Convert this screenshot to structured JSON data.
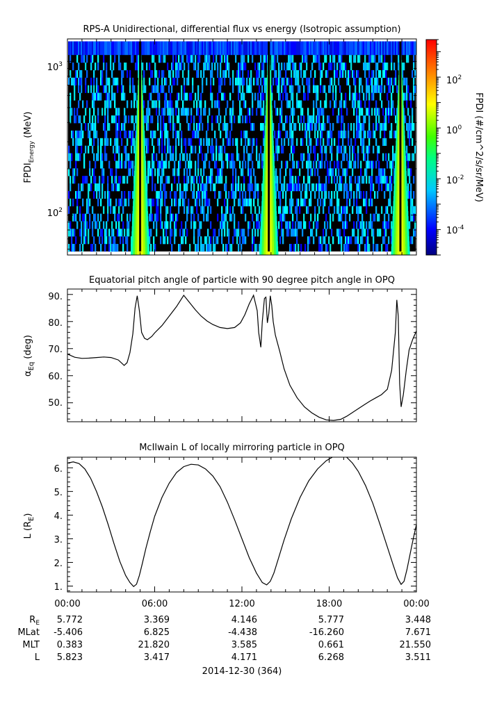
{
  "panels": [
    {
      "title": "RPS-A Unidirectional, differential flux vs energy (Isotropic assumption)",
      "ylabel_main": "FPDI",
      "ylabel_sub": "Energy",
      "ylabel_unit": "(MeV)",
      "yticks": [
        "10",
        "10"
      ],
      "ytick_exps": [
        "3",
        "2"
      ],
      "colorbar": {
        "label": "FPDI (#/cm^2/s/sr/MeV)",
        "tick_bases": [
          "10",
          "10",
          "10",
          "10"
        ],
        "tick_exps": [
          "2",
          "0",
          "-2",
          "-4"
        ]
      }
    },
    {
      "title": "Equatorial pitch angle of particle with 90 degree pitch angle in OPQ",
      "ylabel": "α",
      "ylabel_sub": "Eq",
      "ylabel_unit": "(deg)",
      "yticks": [
        "90.",
        "80.",
        "70.",
        "60.",
        "50."
      ]
    },
    {
      "title": "McIlwain L of locally mirroring particle in OPQ",
      "ylabel": "L (R",
      "ylabel_sub": "E",
      "ylabel_close": ")",
      "yticks": [
        "6.",
        "5.",
        "4.",
        "3.",
        "2.",
        "1."
      ]
    }
  ],
  "xaxis": {
    "ticks": [
      "00:00",
      "06:00",
      "12:00",
      "18:00",
      "00:00"
    ],
    "date_label": "2014-12-30 (364)"
  },
  "ephemeris": {
    "rows": [
      {
        "name": "R",
        "sub": "E",
        "values": [
          "5.772",
          "3.369",
          "4.146",
          "5.777",
          "3.448"
        ]
      },
      {
        "name": "MLat",
        "sub": "",
        "values": [
          "-5.406",
          "6.825",
          "-4.438",
          "-16.260",
          "7.671"
        ]
      },
      {
        "name": "MLT",
        "sub": "",
        "values": [
          "0.383",
          "21.820",
          "3.585",
          "0.661",
          "21.550"
        ]
      },
      {
        "name": "L",
        "sub": "",
        "values": [
          "5.823",
          "3.417",
          "4.171",
          "6.268",
          "3.511"
        ]
      }
    ]
  },
  "chart_data": [
    {
      "type": "heatmap",
      "title": "RPS-A Unidirectional, differential flux vs energy (Isotropic assumption)",
      "xlabel": "",
      "ylabel": "FPDI Energy (MeV)",
      "x_range_hours": [
        0,
        24
      ],
      "y_scale": "log",
      "ylim": [
        55,
        1400
      ],
      "colorbar_scale": "log",
      "colorbar_range": [
        1e-05,
        3000
      ],
      "colorbar_label": "FPDI (#/cm^2/s/sr/MeV)",
      "colormap": "rainbow (blue-cyan-green-yellow-red)",
      "background": "#000000",
      "bands": [
        {
          "center_hour": 5.0,
          "peak_log10_flux": 0.4
        },
        {
          "center_hour": 13.85,
          "peak_log10_flux": 0.5
        },
        {
          "center_hour": 22.9,
          "peak_log10_flux": 0.3
        }
      ]
    },
    {
      "type": "line",
      "title": "Equatorial pitch angle of particle with 90 degree pitch angle in OPQ",
      "ylabel": "αEq (deg)",
      "ylim": [
        43,
        92
      ],
      "x_hours": [
        0,
        0.5,
        1,
        1.5,
        2,
        2.5,
        3,
        3.5,
        3.9,
        4.1,
        4.3,
        4.5,
        4.65,
        4.8,
        4.95,
        5.1,
        5.3,
        5.5,
        5.8,
        6.0,
        6.5,
        7.0,
        7.5,
        8.0,
        8.4,
        8.8,
        9.2,
        9.6,
        10.0,
        10.5,
        11.0,
        11.5,
        11.9,
        12.2,
        12.5,
        12.8,
        13.05,
        13.15,
        13.3,
        13.4,
        13.55,
        13.65,
        13.75,
        13.85,
        13.95,
        14.05,
        14.15,
        14.3,
        14.6,
        14.9,
        15.3,
        15.8,
        16.3,
        16.8,
        17.3,
        17.8,
        18.3,
        18.8,
        19.2,
        19.6,
        20.0,
        20.4,
        20.8,
        21.2,
        21.6,
        22.0,
        22.3,
        22.55,
        22.65,
        22.75,
        22.85,
        22.95,
        23.1,
        23.3,
        23.5,
        23.75,
        24.0
      ],
      "y_deg": [
        68.0,
        66.8,
        66.4,
        66.5,
        66.7,
        66.9,
        66.7,
        65.8,
        63.8,
        64.8,
        68.5,
        75.5,
        85.0,
        89.5,
        84.0,
        76.0,
        73.8,
        73.3,
        74.5,
        75.8,
        78.5,
        82.0,
        85.5,
        89.7,
        87.0,
        84.3,
        82.0,
        80.2,
        78.9,
        77.8,
        77.4,
        77.8,
        79.5,
        82.5,
        86.5,
        89.7,
        84.0,
        76.0,
        70.5,
        80.0,
        88.5,
        89.0,
        79.5,
        83.0,
        89.5,
        86.0,
        80.0,
        75.0,
        69.0,
        62.5,
        56.5,
        51.8,
        48.5,
        46.3,
        44.7,
        43.7,
        43.5,
        43.9,
        45.0,
        46.4,
        47.8,
        49.2,
        50.6,
        51.8,
        53.0,
        55.0,
        62.0,
        76.0,
        88.0,
        82.0,
        57.0,
        48.5,
        53.0,
        62.0,
        69.5,
        73.5,
        76.5
      ]
    },
    {
      "type": "line",
      "title": "McIlwain L of locally mirroring particle in OPQ",
      "ylabel": "L (RE)",
      "ylim": [
        0.75,
        6.45
      ],
      "x_hours": [
        0,
        0.4,
        0.8,
        1.2,
        1.6,
        2.0,
        2.4,
        2.8,
        3.2,
        3.6,
        4.0,
        4.3,
        4.55,
        4.75,
        4.95,
        5.15,
        5.4,
        5.7,
        6.0,
        6.5,
        7.0,
        7.5,
        8.0,
        8.5,
        9.0,
        9.5,
        10.0,
        10.5,
        11.0,
        11.5,
        12.0,
        12.5,
        13.0,
        13.4,
        13.7,
        13.95,
        14.2,
        14.5,
        14.9,
        15.4,
        16.0,
        16.6,
        17.2,
        17.8,
        18.3,
        18.8,
        19.2,
        19.6,
        20.0,
        20.5,
        21.0,
        21.5,
        22.0,
        22.4,
        22.7,
        22.95,
        23.15,
        23.35,
        23.6,
        23.8,
        24.0
      ],
      "y_re": [
        6.2,
        6.25,
        6.18,
        5.95,
        5.55,
        5.0,
        4.35,
        3.6,
        2.8,
        2.05,
        1.45,
        1.15,
        0.98,
        1.08,
        1.45,
        1.95,
        2.6,
        3.3,
        3.95,
        4.75,
        5.35,
        5.8,
        6.05,
        6.15,
        6.12,
        5.95,
        5.65,
        5.2,
        4.55,
        3.8,
        3.0,
        2.2,
        1.55,
        1.15,
        1.05,
        1.2,
        1.55,
        2.15,
        2.95,
        3.85,
        4.75,
        5.45,
        5.95,
        6.3,
        6.48,
        6.55,
        6.45,
        6.2,
        5.85,
        5.25,
        4.5,
        3.6,
        2.65,
        1.9,
        1.35,
        1.07,
        1.2,
        1.7,
        2.45,
        3.05,
        3.6
      ]
    }
  ]
}
